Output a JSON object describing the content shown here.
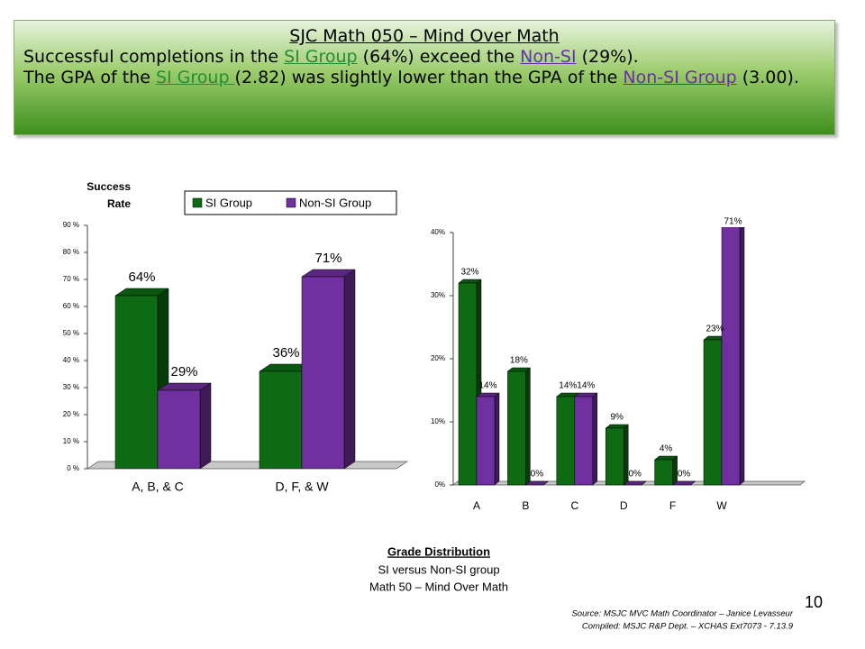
{
  "header": {
    "title": "SJC Math 050 – Mind Over Math",
    "lines": [
      [
        {
          "text": "Successful completions in the "
        },
        {
          "text": "SI Group",
          "link": true,
          "color": "#1f8f3a"
        },
        {
          "text": " (64%) exceed the "
        },
        {
          "text": "Non-SI",
          "link": true,
          "color": "#6a2fa8"
        },
        {
          "text": " (29%)."
        }
      ],
      [
        {
          "text": "The GPA of the "
        },
        {
          "text": "SI Group ",
          "link": true,
          "color": "#1f8f3a"
        },
        {
          "text": "(2.82) was slightly lower than the GPA of the "
        },
        {
          "text": "Non-SI Group",
          "link": true,
          "color": "#6a2fa8"
        },
        {
          "text": " (3.00)."
        }
      ]
    ]
  },
  "chart_data": [
    {
      "type": "bar3d",
      "y_label": [
        "Success",
        "Rate"
      ],
      "categories": [
        "A, B, & C",
        "D, F, & W"
      ],
      "series": [
        {
          "name": "SI Group",
          "color": "#0e6b14",
          "values": [
            64,
            36
          ],
          "value_labels": [
            "64%",
            "36%"
          ]
        },
        {
          "name": "Non-SI Group",
          "color": "#7030a0",
          "values": [
            29,
            71
          ],
          "value_labels": [
            "29%",
            "71%"
          ]
        }
      ],
      "ylim": [
        0,
        90
      ],
      "yticks": [
        {
          "value": 0,
          "label": "0 %"
        },
        {
          "value": 10,
          "label": "10 %"
        },
        {
          "value": 20,
          "label": "20 %"
        },
        {
          "value": 30,
          "label": "30 %"
        },
        {
          "value": 40,
          "label": "40 %"
        },
        {
          "value": 50,
          "label": "50 %"
        },
        {
          "value": 60,
          "label": "60 %"
        },
        {
          "value": 70,
          "label": "70 %"
        },
        {
          "value": 80,
          "label": "80 %"
        },
        {
          "value": 90,
          "label": "90 %"
        }
      ],
      "legend": "top"
    },
    {
      "type": "bar3d",
      "title": "Grade Distribution",
      "subtitle": [
        "SI versus Non-SI group",
        "Math 50 – Mind Over Math"
      ],
      "categories": [
        "A",
        "B",
        "C",
        "D",
        "F",
        "W"
      ],
      "series": [
        {
          "color": "#0e6b14",
          "values": [
            32,
            18,
            14,
            9,
            4,
            23
          ],
          "value_labels": [
            "32%",
            "18%",
            "14%",
            "9%",
            "4%",
            "23%"
          ]
        },
        {
          "color": "#7030a0",
          "values": [
            14,
            0,
            14,
            0,
            0,
            71
          ],
          "value_labels": [
            "14%",
            "0%",
            "14%",
            "0%",
            "0%",
            "71%"
          ]
        }
      ],
      "ylim": [
        0,
        40
      ],
      "yticks": [
        {
          "value": 0,
          "label": "0%"
        },
        {
          "value": 10,
          "label": "10%"
        },
        {
          "value": 20,
          "label": "20%"
        },
        {
          "value": 30,
          "label": "30%"
        },
        {
          "value": 40,
          "label": "40%"
        }
      ]
    }
  ],
  "source": [
    "Source: MSJC MVC Math Coordinator – Janice Levasseur",
    "Compiled: MSJC R&P Dept. – XCHAS Ext7073 - 7.13.9"
  ],
  "page_number": "10"
}
